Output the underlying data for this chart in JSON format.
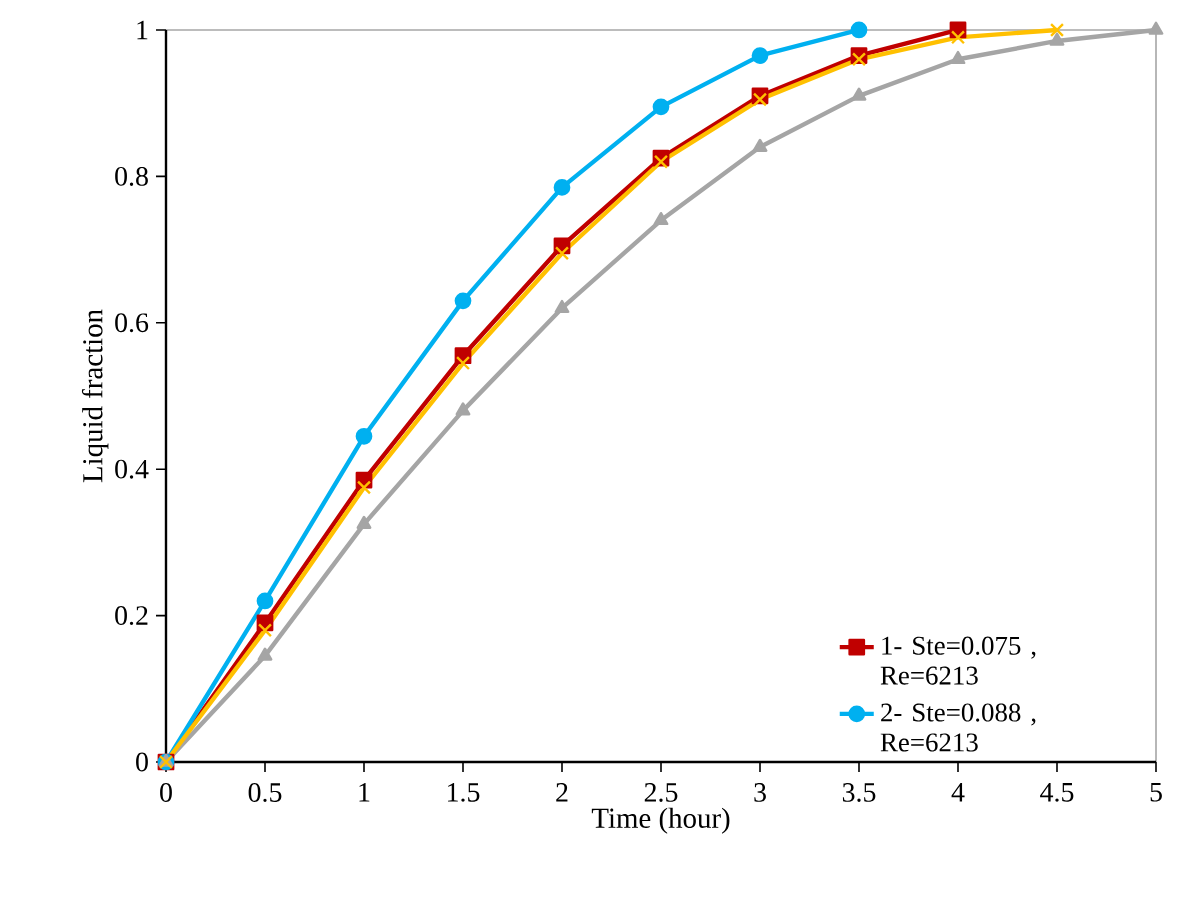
{
  "chart_data": {
    "type": "line",
    "xlabel": "Time (hour)",
    "ylabel": "Liquid fraction",
    "xlim": [
      0,
      5
    ],
    "ylim": [
      0,
      1
    ],
    "xticks": [
      0,
      0.5,
      1,
      1.5,
      2,
      2.5,
      3,
      3.5,
      4,
      4.5,
      5
    ],
    "yticks": [
      0,
      0.2,
      0.4,
      0.6,
      0.8,
      1
    ],
    "grid": false,
    "legend": "bottom right",
    "line_style": "solid",
    "series": [
      {
        "name": "1- Ste=0.075 , Re=6213",
        "color": "#c00000",
        "marker": "square",
        "x": [
          0,
          0.5,
          1,
          1.5,
          2,
          2.5,
          3,
          3.5,
          4
        ],
        "values": [
          0,
          0.19,
          0.385,
          0.555,
          0.705,
          0.825,
          0.91,
          0.965,
          1.0
        ]
      },
      {
        "name": "2- Ste=0.088 , Re=6213",
        "color": "#00b0f0",
        "marker": "circle",
        "x": [
          0,
          0.5,
          1,
          1.5,
          2,
          2.5,
          3,
          3.5
        ],
        "values": [
          0,
          0.22,
          0.445,
          0.63,
          0.785,
          0.895,
          0.965,
          1.0
        ]
      },
      {
        "color": "#a5a5a5",
        "marker": "triangle",
        "x": [
          0,
          0.5,
          1,
          1.5,
          2,
          2.5,
          3,
          3.5,
          4,
          4.5,
          5
        ],
        "values": [
          0,
          0.145,
          0.325,
          0.48,
          0.62,
          0.74,
          0.84,
          0.91,
          0.96,
          0.985,
          1.0
        ]
      },
      {
        "color": "#ffc000",
        "marker": "cross",
        "x": [
          0,
          0.5,
          1,
          1.5,
          2,
          2.5,
          3,
          3.5,
          4,
          4.5
        ],
        "values": [
          0,
          0.18,
          0.375,
          0.545,
          0.695,
          0.82,
          0.905,
          0.96,
          0.99,
          1.0
        ]
      }
    ]
  }
}
